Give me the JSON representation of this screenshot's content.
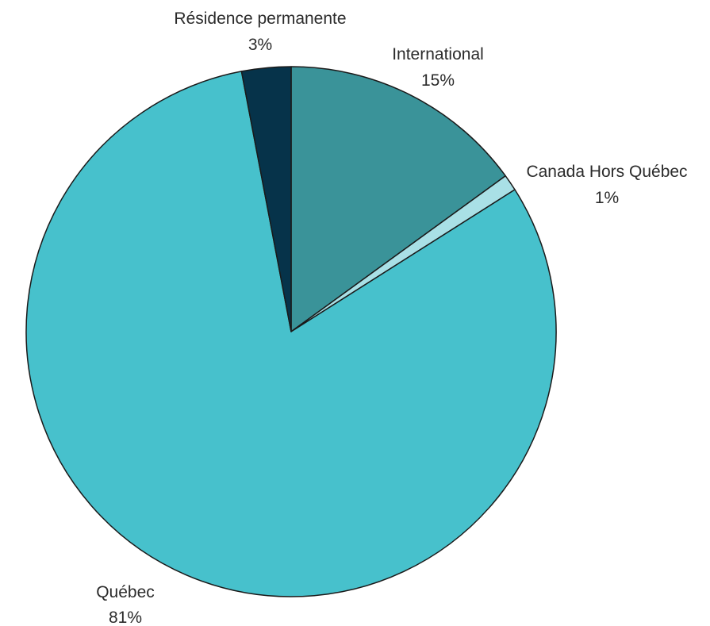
{
  "chart_data": {
    "type": "pie",
    "start_angle_deg": 0,
    "direction": "clockwise",
    "slices": [
      {
        "label": "International",
        "percent_label": "15%",
        "value": 15,
        "color": "#3a9399"
      },
      {
        "label": "Canada Hors Québec",
        "percent_label": "1%",
        "value": 1,
        "color": "#a9e0e6"
      },
      {
        "label": "Québec",
        "percent_label": "81%",
        "value": 81,
        "color": "#47c1cc"
      },
      {
        "label": "Résidence permanente",
        "percent_label": "3%",
        "value": 3,
        "color": "#06334a"
      }
    ]
  }
}
